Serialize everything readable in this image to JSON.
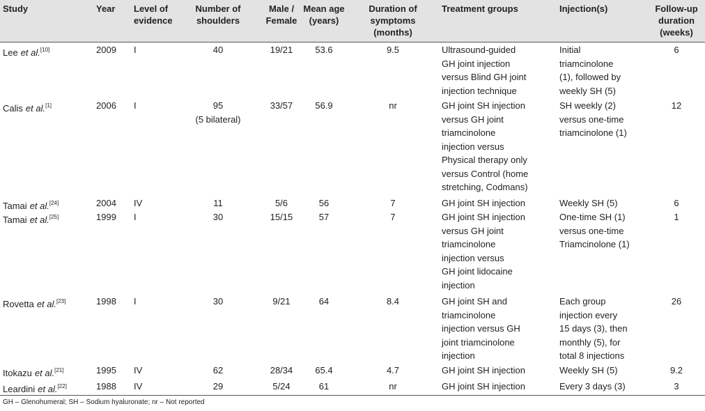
{
  "table": {
    "header": [
      [
        "Study"
      ],
      [
        "Year"
      ],
      [
        "Level of",
        "evidence"
      ],
      [
        "Number of",
        "shoulders"
      ],
      [
        "Male /",
        "Female"
      ],
      [
        "Mean age",
        "(years)"
      ],
      [
        "Duration of",
        "symptoms",
        "(months)"
      ],
      [
        "Treatment groups"
      ],
      [
        "Injection(s)"
      ],
      [
        "Follow-up",
        "duration",
        "(weeks)"
      ]
    ],
    "rows": [
      {
        "study": {
          "author": "Lee",
          "etal": "et al.",
          "ref": "[10]"
        },
        "year": "2009",
        "level": "I",
        "shoulders": [
          "40"
        ],
        "sex": "19/21",
        "age": "53.6",
        "duration": "9.5",
        "treatment": [
          "Ultrasound-guided",
          "GH joint injection",
          "versus Blind GH joint",
          "injection technique"
        ],
        "injections": [
          "Initial",
          "triamcinolone",
          "(1), followed by",
          "weekly SH (5)"
        ],
        "followup": "6"
      },
      {
        "study": {
          "author": "Calis",
          "etal": "et al.",
          "ref": "[1]"
        },
        "year": "2006",
        "level": "I",
        "shoulders": [
          "95",
          "(5 bilateral)"
        ],
        "sex": "33/57",
        "age": "56.9",
        "duration": "nr",
        "treatment": [
          "GH joint SH injection",
          "versus  GH joint",
          "triamcinolone",
          "injection versus",
          "Physical therapy only",
          "versus Control (home",
          "stretching,  Codmans)"
        ],
        "injections": [
          "SH weekly (2)",
          "versus one-time",
          "triamcinolone (1)"
        ],
        "followup": "12"
      },
      {
        "study": {
          "author": "Tamai",
          "etal": "et al.",
          "ref": "[24]"
        },
        "year": "2004",
        "level": "IV",
        "shoulders": [
          "11"
        ],
        "sex": "5/6",
        "age": "56",
        "duration": "7",
        "treatment": [
          "GH joint SH injection"
        ],
        "injections": [
          "Weekly SH (5)"
        ],
        "followup": "6"
      },
      {
        "study": {
          "author": "Tamai",
          "etal": "et al.",
          "ref": "[25]"
        },
        "year": "1999",
        "level": "I",
        "shoulders": [
          "30"
        ],
        "sex": "15/15",
        "age": "57",
        "duration": "7",
        "treatment": [
          "GH joint SH injection",
          "versus GH joint",
          "triamcinolone",
          "injection versus",
          "GH joint lidocaine",
          "injection"
        ],
        "injections": [
          "One-time SH (1)",
          "versus one-time",
          "Triamcinolone (1)"
        ],
        "followup": "1"
      },
      {
        "study": {
          "author": "Rovetta",
          "etal": "et al.",
          "ref": "[23]"
        },
        "year": "1998",
        "level": "I",
        "shoulders": [
          "30"
        ],
        "sex": "9/21",
        "age": "64",
        "duration": "8.4",
        "treatment": [
          "GH joint SH and",
          "triamcinolone",
          "injection versus GH",
          "joint triamcinolone",
          "injection"
        ],
        "injections": [
          "Each group",
          "injection every",
          "15 days (3), then",
          "monthly (5), for",
          "total 8 injections"
        ],
        "followup": "26"
      },
      {
        "study": {
          "author": "Itokazu",
          "etal": "et al.",
          "ref": "[21]"
        },
        "year": "1995",
        "level": "IV",
        "shoulders": [
          "62"
        ],
        "sex": "28/34",
        "age": "65.4",
        "duration": "4.7",
        "treatment": [
          "GH joint SH injection"
        ],
        "injections": [
          "Weekly SH (5)"
        ],
        "followup": "9.2"
      },
      {
        "study": {
          "author": "Leardini",
          "etal": "et al.",
          "ref": "[22]"
        },
        "year": "1988",
        "level": "IV",
        "shoulders": [
          "29"
        ],
        "sex": "5/24",
        "age": "61",
        "duration": "nr",
        "treatment": [
          "GH joint SH injection"
        ],
        "injections": [
          "Every 3 days (3)"
        ],
        "followup": "3"
      }
    ],
    "footnote": "GH – Glenohumeral; SH – Sodium hyaluronate; nr – Not reported"
  }
}
